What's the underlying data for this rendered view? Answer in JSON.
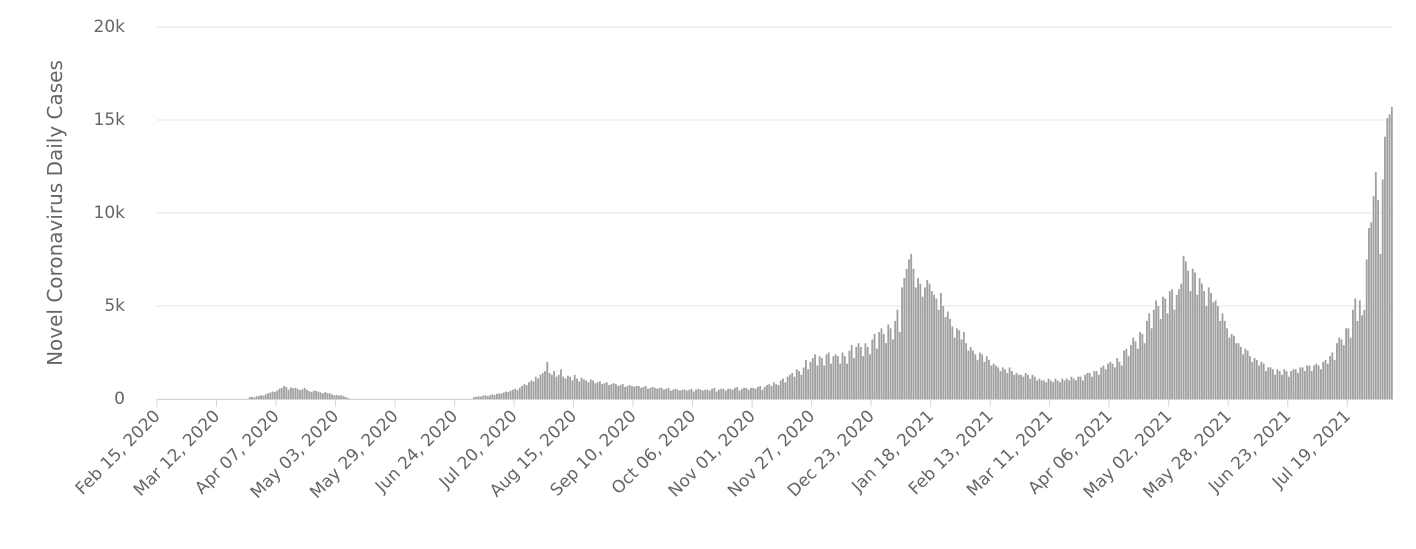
{
  "chart_data": {
    "type": "bar",
    "y_axis_label": "Novel Coronavirus Daily Cases",
    "color": "#a0a0a0",
    "grid": true,
    "ylim": [
      0,
      20000
    ],
    "yticks": [
      0,
      {
        "value": 5000,
        "label": "5k"
      },
      {
        "value": 10000,
        "label": "10k"
      },
      {
        "value": 15000,
        "label": "15k"
      },
      {
        "value": 20000,
        "label": "20k"
      }
    ],
    "categories": [
      "Feb 15, 2020",
      null,
      null,
      null,
      null,
      null,
      null,
      null,
      null,
      null,
      null,
      null,
      null,
      null,
      null,
      null,
      null,
      null,
      null,
      null,
      null,
      null,
      null,
      null,
      null,
      null,
      "Mar 12, 2020",
      null,
      null,
      null,
      null,
      null,
      null,
      null,
      null,
      null,
      null,
      null,
      null,
      null,
      null,
      null,
      null,
      null,
      null,
      null,
      null,
      null,
      null,
      null,
      null,
      null,
      "Apr 07, 2020",
      null,
      null,
      null,
      null,
      null,
      null,
      null,
      null,
      null,
      null,
      null,
      null,
      null,
      null,
      null,
      null,
      null,
      null,
      null,
      null,
      null,
      null,
      null,
      null,
      null,
      "May 03, 2020",
      null,
      null,
      null,
      null,
      null,
      null,
      null,
      null,
      null,
      null,
      null,
      null,
      null,
      null,
      null,
      null,
      null,
      null,
      null,
      null,
      null,
      null,
      null,
      null,
      null,
      "May 29, 2020",
      null,
      null,
      null,
      null,
      null,
      null,
      null,
      null,
      null,
      null,
      null,
      null,
      null,
      null,
      null,
      null,
      null,
      null,
      null,
      null,
      null,
      null,
      null,
      null,
      null,
      "Jun 24, 2020",
      null,
      null,
      null,
      null,
      null,
      null,
      null,
      null,
      null,
      null,
      null,
      null,
      null,
      null,
      null,
      null,
      null,
      null,
      null,
      null,
      null,
      null,
      null,
      null,
      null,
      "Jul 20, 2020",
      null,
      null,
      null,
      null,
      null,
      null,
      null,
      null,
      null,
      null,
      null,
      null,
      null,
      null,
      null,
      null,
      null,
      null,
      null,
      null,
      null,
      null,
      null,
      null,
      null,
      "Aug 15, 2020",
      null,
      null,
      null,
      null,
      null,
      null,
      null,
      null,
      null,
      null,
      null,
      null,
      null,
      null,
      null,
      null,
      null,
      null,
      null,
      null,
      null,
      null,
      null,
      null,
      null,
      "Sep 10, 2020",
      null,
      null,
      null,
      null,
      null,
      null,
      null,
      null,
      null,
      null,
      null,
      null,
      null,
      null,
      null,
      null,
      null,
      null,
      null,
      null,
      null,
      null,
      null,
      null,
      null,
      "Oct 06, 2020",
      null,
      null,
      null,
      null,
      null,
      null,
      null,
      null,
      null,
      null,
      null,
      null,
      null,
      null,
      null,
      null,
      null,
      null,
      null,
      null,
      null,
      null,
      null,
      null,
      null,
      "Nov 01, 2020",
      null,
      null,
      null,
      null,
      null,
      null,
      null,
      null,
      null,
      null,
      null,
      null,
      null,
      null,
      null,
      null,
      null,
      null,
      null,
      null,
      null,
      null,
      null,
      null,
      null,
      "Nov 27, 2020",
      null,
      null,
      null,
      null,
      null,
      null,
      null,
      null,
      null,
      null,
      null,
      null,
      null,
      null,
      null,
      null,
      null,
      null,
      null,
      null,
      null,
      null,
      null,
      null,
      null,
      "Dec 23, 2020",
      null,
      null,
      null,
      null,
      null,
      null,
      null,
      null,
      null,
      null,
      null,
      null,
      null,
      null,
      null,
      null,
      null,
      null,
      null,
      null,
      null,
      null,
      null,
      null,
      null,
      "Jan 18, 2021",
      null,
      null,
      null,
      null,
      null,
      null,
      null,
      null,
      null,
      null,
      null,
      null,
      null,
      null,
      null,
      null,
      null,
      null,
      null,
      null,
      null,
      null,
      null,
      null,
      null,
      "Feb 13, 2021",
      null,
      null,
      null,
      null,
      null,
      null,
      null,
      null,
      null,
      null,
      null,
      null,
      null,
      null,
      null,
      null,
      null,
      null,
      null,
      null,
      null,
      null,
      null,
      null,
      null,
      "Mar 11, 2021",
      null,
      null,
      null,
      null,
      null,
      null,
      null,
      null,
      null,
      null,
      null,
      null,
      null,
      null,
      null,
      null,
      null,
      null,
      null,
      null,
      null,
      null,
      null,
      null,
      null,
      "Apr 06, 2021",
      null,
      null,
      null,
      null,
      null,
      null,
      null,
      null,
      null,
      null,
      null,
      null,
      null,
      null,
      null,
      null,
      null,
      null,
      null,
      null,
      null,
      null,
      null,
      null,
      null,
      "May 02, 2021",
      null,
      null,
      null,
      null,
      null,
      null,
      null,
      null,
      null,
      null,
      null,
      null,
      null,
      null,
      null,
      null,
      null,
      null,
      null,
      null,
      null,
      null,
      null,
      null,
      null,
      "May 28, 2021",
      null,
      null,
      null,
      null,
      null,
      null,
      null,
      null,
      null,
      null,
      null,
      null,
      null,
      null,
      null,
      null,
      null,
      null,
      null,
      null,
      null,
      null,
      null,
      null,
      null,
      "Jun 23, 2021",
      null,
      null,
      null,
      null,
      null,
      null,
      null,
      null,
      null,
      null,
      null,
      null,
      null,
      null,
      null,
      null,
      null,
      null,
      null,
      null,
      null,
      null,
      null,
      null,
      null,
      "Jul 19, 2021",
      null,
      null,
      null,
      null,
      null,
      null,
      null,
      null,
      null,
      null,
      null,
      null,
      null,
      null,
      null,
      null,
      null,
      null,
      null
    ],
    "values": [
      0,
      0,
      0,
      0,
      0,
      0,
      0,
      0,
      0,
      0,
      0,
      0,
      0,
      0,
      0,
      0,
      0,
      0,
      0,
      0,
      0,
      0,
      0,
      0,
      0,
      0,
      0,
      0,
      0,
      0,
      0,
      0,
      0,
      0,
      0,
      0,
      0,
      0,
      0,
      0,
      100,
      120,
      80,
      150,
      160,
      200,
      180,
      250,
      300,
      350,
      400,
      380,
      450,
      550,
      600,
      700,
      650,
      500,
      620,
      580,
      600,
      550,
      480,
      520,
      600,
      500,
      420,
      380,
      450,
      430,
      400,
      350,
      300,
      380,
      320,
      300,
      250,
      200,
      220,
      180,
      200,
      150,
      100,
      50,
      0,
      0,
      0,
      0,
      0,
      0,
      0,
      0,
      0,
      0,
      0,
      0,
      0,
      0,
      0,
      0,
      0,
      0,
      0,
      0,
      0,
      0,
      0,
      0,
      0,
      0,
      0,
      0,
      0,
      0,
      0,
      0,
      0,
      0,
      0,
      0,
      0,
      0,
      0,
      0,
      0,
      0,
      0,
      0,
      0,
      0,
      0,
      0,
      0,
      0,
      0,
      0,
      0,
      0,
      100,
      120,
      150,
      130,
      180,
      200,
      160,
      200,
      250,
      220,
      280,
      300,
      300,
      350,
      400,
      380,
      450,
      500,
      550,
      480,
      600,
      700,
      800,
      750,
      900,
      1000,
      950,
      1200,
      1100,
      1300,
      1400,
      1500,
      2000,
      1400,
      1300,
      1500,
      1200,
      1300,
      1600,
      1200,
      1100,
      1250,
      1200,
      1000,
      1300,
      1100,
      950,
      1150,
      1050,
      1000,
      900,
      1050,
      1000,
      850,
      900,
      950,
      800,
      850,
      900,
      750,
      800,
      850,
      800,
      700,
      750,
      800,
      650,
      700,
      750,
      700,
      650,
      700,
      700,
      600,
      650,
      700,
      550,
      600,
      650,
      600,
      550,
      600,
      600,
      500,
      550,
      600,
      450,
      500,
      550,
      500,
      450,
      500,
      500,
      450,
      500,
      550,
      400,
      500,
      550,
      500,
      450,
      500,
      500,
      450,
      550,
      600,
      400,
      500,
      550,
      550,
      450,
      550,
      550,
      500,
      600,
      650,
      450,
      550,
      600,
      600,
      500,
      600,
      600,
      550,
      650,
      700,
      500,
      650,
      750,
      800,
      700,
      900,
      800,
      750,
      1000,
      1100,
      900,
      1200,
      1300,
      1400,
      1200,
      1600,
      1500,
      1300,
      1700,
      2100,
      1600,
      2000,
      2200,
      2400,
      1800,
      2300,
      2200,
      1800,
      2400,
      2500,
      1900,
      2300,
      2400,
      2300,
      1900,
      2500,
      2300,
      1900,
      2600,
      2900,
      2200,
      2800,
      3000,
      2800,
      2300,
      3000,
      2800,
      2400,
      3200,
      3500,
      2700,
      3600,
      3800,
      3500,
      3000,
      4000,
      3800,
      3200,
      4200,
      4800,
      3600,
      6000,
      6500,
      7000,
      7500,
      7800,
      7000,
      6000,
      6500,
      6200,
      5500,
      6000,
      6400,
      6200,
      5800,
      5600,
      5400,
      4800,
      5700,
      5000,
      4400,
      4700,
      4300,
      3900,
      3300,
      3800,
      3700,
      3200,
      3600,
      3000,
      2600,
      2800,
      2600,
      2400,
      2100,
      2500,
      2400,
      2000,
      2300,
      2100,
      1800,
      1900,
      1800,
      1700,
      1500,
      1700,
      1600,
      1400,
      1700,
      1500,
      1300,
      1400,
      1300,
      1300,
      1200,
      1400,
      1300,
      1100,
      1300,
      1200,
      1000,
      1100,
      1000,
      1000,
      900,
      1100,
      1000,
      900,
      1100,
      1000,
      900,
      1100,
      1000,
      1100,
      1000,
      1200,
      1100,
      1000,
      1200,
      1200,
      1000,
      1300,
      1400,
      1400,
      1200,
      1500,
      1500,
      1300,
      1700,
      1800,
      1600,
      1900,
      2000,
      1900,
      1700,
      2200,
      2000,
      1800,
      2600,
      2700,
      2300,
      2900,
      3300,
      3100,
      2700,
      3600,
      3500,
      3000,
      4200,
      4600,
      3800,
      4800,
      5300,
      5000,
      4300,
      5500,
      5400,
      4600,
      5800,
      5900,
      4800,
      5600,
      5900,
      6200,
      7700,
      7400,
      6900,
      5800,
      7000,
      6800,
      5600,
      6500,
      6200,
      5800,
      5000,
      6000,
      5700,
      5200,
      5300,
      5000,
      4200,
      4600,
      4200,
      3800,
      3300,
      3500,
      3400,
      3000,
      3000,
      2800,
      2400,
      2700,
      2600,
      2300,
      2000,
      2200,
      2100,
      1800,
      2000,
      1900,
      1500,
      1700,
      1700,
      1600,
      1300,
      1600,
      1500,
      1300,
      1600,
      1500,
      1200,
      1500,
      1600,
      1600,
      1400,
      1700,
      1700,
      1500,
      1800,
      1800,
      1500,
      1800,
      1900,
      1800,
      1600,
      2000,
      2100,
      1900,
      2300,
      2500,
      2100,
      3000,
      3300,
      3200,
      2900,
      3800,
      3800,
      3300,
      4800,
      5400,
      4200,
      5300,
      4500,
      4800,
      7500,
      9200,
      9500,
      10900,
      12200,
      10700,
      7800,
      11800,
      14100,
      15100,
      15300,
      15700
    ]
  }
}
